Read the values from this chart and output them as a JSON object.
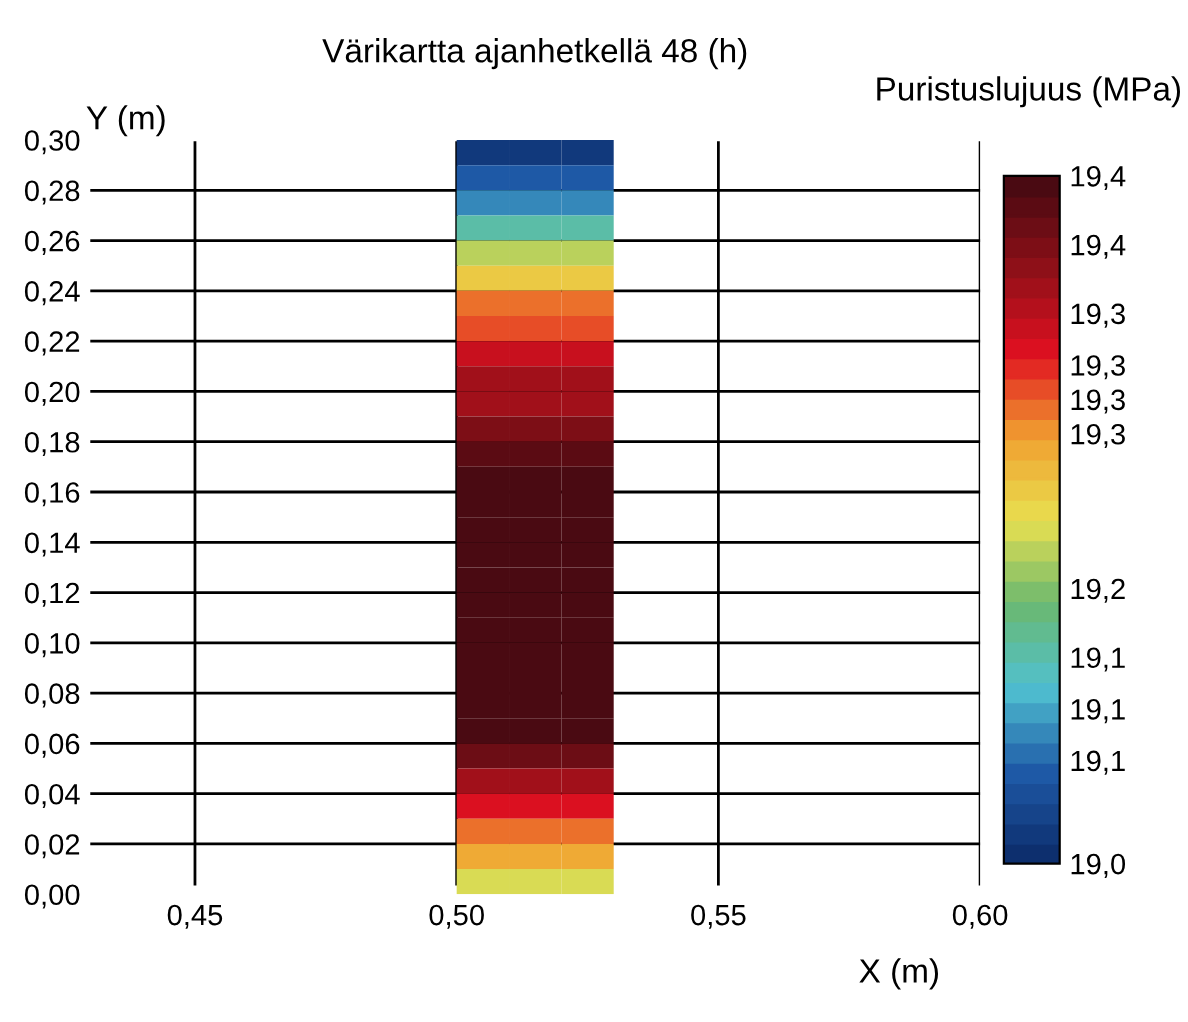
{
  "chart_data": {
    "type": "heatmap",
    "title": "Värikartta ajanhetkellä 48 (h)",
    "xlabel": "X (m)",
    "ylabel": "Y (m)",
    "clabel": "Puristuslujuus (MPa)",
    "cells": [
      [
        null,
        null,
        null,
        null,
        null,
        null,
        null,
        19.02,
        19.02,
        19.02,
        null,
        null,
        null,
        null,
        null,
        null,
        null
      ],
      [
        null,
        null,
        null,
        null,
        null,
        null,
        null,
        19.05,
        19.05,
        19.05,
        null,
        null,
        null,
        null,
        null,
        null,
        null
      ],
      [
        null,
        null,
        null,
        null,
        null,
        null,
        null,
        19.08,
        19.08,
        19.08,
        null,
        null,
        null,
        null,
        null,
        null,
        null
      ],
      [
        null,
        null,
        null,
        null,
        null,
        null,
        null,
        19.12,
        19.12,
        19.12,
        null,
        null,
        null,
        null,
        null,
        null,
        null
      ],
      [
        null,
        null,
        null,
        null,
        null,
        null,
        null,
        19.18,
        19.18,
        19.18,
        null,
        null,
        null,
        null,
        null,
        null,
        null
      ],
      [
        null,
        null,
        null,
        null,
        null,
        null,
        null,
        19.22,
        19.22,
        19.22,
        null,
        null,
        null,
        null,
        null,
        null,
        null
      ],
      [
        null,
        null,
        null,
        null,
        null,
        null,
        null,
        19.26,
        19.26,
        19.26,
        null,
        null,
        null,
        null,
        null,
        null,
        null
      ],
      [
        null,
        null,
        null,
        null,
        null,
        null,
        null,
        19.28,
        19.28,
        19.28,
        null,
        null,
        null,
        null,
        null,
        null,
        null
      ],
      [
        null,
        null,
        null,
        null,
        null,
        null,
        null,
        19.31,
        19.31,
        19.31,
        null,
        null,
        null,
        null,
        null,
        null,
        null
      ],
      [
        null,
        null,
        null,
        null,
        null,
        null,
        null,
        19.33,
        19.33,
        19.33,
        null,
        null,
        null,
        null,
        null,
        null,
        null
      ],
      [
        null,
        null,
        null,
        null,
        null,
        null,
        null,
        19.34,
        19.34,
        19.34,
        null,
        null,
        null,
        null,
        null,
        null,
        null
      ],
      [
        null,
        null,
        null,
        null,
        null,
        null,
        null,
        19.36,
        19.36,
        19.36,
        null,
        null,
        null,
        null,
        null,
        null,
        null
      ],
      [
        null,
        null,
        null,
        null,
        null,
        null,
        null,
        19.38,
        19.38,
        19.38,
        null,
        null,
        null,
        null,
        null,
        null,
        null
      ],
      [
        null,
        null,
        null,
        null,
        null,
        null,
        null,
        19.39,
        19.39,
        19.39,
        null,
        null,
        null,
        null,
        null,
        null,
        null
      ],
      [
        null,
        null,
        null,
        null,
        null,
        null,
        null,
        19.4,
        19.4,
        19.4,
        null,
        null,
        null,
        null,
        null,
        null,
        null
      ],
      [
        null,
        null,
        null,
        null,
        null,
        null,
        null,
        19.4,
        19.4,
        19.4,
        null,
        null,
        null,
        null,
        null,
        null,
        null
      ],
      [
        null,
        null,
        null,
        null,
        null,
        null,
        null,
        19.4,
        19.4,
        19.4,
        null,
        null,
        null,
        null,
        null,
        null,
        null
      ],
      [
        null,
        null,
        null,
        null,
        null,
        null,
        null,
        19.4,
        19.4,
        19.4,
        null,
        null,
        null,
        null,
        null,
        null,
        null
      ],
      [
        null,
        null,
        null,
        null,
        null,
        null,
        null,
        19.4,
        19.4,
        19.4,
        null,
        null,
        null,
        null,
        null,
        null,
        null
      ],
      [
        null,
        null,
        null,
        null,
        null,
        null,
        null,
        19.4,
        19.4,
        19.4,
        null,
        null,
        null,
        null,
        null,
        null,
        null
      ],
      [
        null,
        null,
        null,
        null,
        null,
        null,
        null,
        19.4,
        19.4,
        19.4,
        null,
        null,
        null,
        null,
        null,
        null,
        null
      ],
      [
        null,
        null,
        null,
        null,
        null,
        null,
        null,
        19.4,
        19.4,
        19.4,
        null,
        null,
        null,
        null,
        null,
        null,
        null
      ],
      [
        null,
        null,
        null,
        null,
        null,
        null,
        null,
        19.4,
        19.4,
        19.4,
        null,
        null,
        null,
        null,
        null,
        null,
        null
      ],
      [
        null,
        null,
        null,
        null,
        null,
        null,
        null,
        19.39,
        19.39,
        19.39,
        null,
        null,
        null,
        null,
        null,
        null,
        null
      ],
      [
        null,
        null,
        null,
        null,
        null,
        null,
        null,
        19.37,
        19.37,
        19.37,
        null,
        null,
        null,
        null,
        null,
        null,
        null
      ],
      [
        null,
        null,
        null,
        null,
        null,
        null,
        null,
        19.34,
        19.34,
        19.34,
        null,
        null,
        null,
        null,
        null,
        null,
        null
      ],
      [
        null,
        null,
        null,
        null,
        null,
        null,
        null,
        19.3,
        19.3,
        19.3,
        null,
        null,
        null,
        null,
        null,
        null,
        null
      ],
      [
        null,
        null,
        null,
        null,
        null,
        null,
        null,
        19.27,
        19.27,
        19.27,
        null,
        null,
        null,
        null,
        null,
        null,
        null
      ],
      [
        null,
        null,
        null,
        null,
        null,
        null,
        null,
        19.24,
        19.24,
        19.24,
        null,
        null,
        null,
        null,
        null,
        null,
        null
      ],
      [
        null,
        null,
        null,
        null,
        null,
        null,
        null,
        19.19,
        19.19,
        19.19,
        null,
        null,
        null,
        null,
        null,
        null,
        null
      ]
    ],
    "xlim": [
      0.43,
      0.6
    ],
    "xticks": [
      {
        "value": 0.45,
        "label": "0,45"
      },
      {
        "value": 0.5,
        "label": "0,50"
      },
      {
        "value": 0.55,
        "label": "0,55"
      },
      {
        "value": 0.6,
        "label": "0,60"
      }
    ],
    "ylim": [
      0.0,
      0.3
    ],
    "yticks": [
      {
        "value": 0.0,
        "label": "0,00"
      },
      {
        "value": 0.02,
        "label": "0,02"
      },
      {
        "value": 0.04,
        "label": "0,04"
      },
      {
        "value": 0.06,
        "label": "0,06"
      },
      {
        "value": 0.08,
        "label": "0,08"
      },
      {
        "value": 0.1,
        "label": "0,10"
      },
      {
        "value": 0.12,
        "label": "0,12"
      },
      {
        "value": 0.14,
        "label": "0,14"
      },
      {
        "value": 0.16,
        "label": "0,16"
      },
      {
        "value": 0.18,
        "label": "0,18"
      },
      {
        "value": 0.2,
        "label": "0,20"
      },
      {
        "value": 0.22,
        "label": "0,22"
      },
      {
        "value": 0.24,
        "label": "0,24"
      },
      {
        "value": 0.26,
        "label": "0,26"
      },
      {
        "value": 0.28,
        "label": "0,28"
      },
      {
        "value": 0.3,
        "label": "0,30"
      }
    ],
    "clim": [
      19.0,
      19.4
    ],
    "cticks": [
      {
        "value": 19.0,
        "label": "19,0"
      },
      {
        "value": 19.06,
        "label": "19,1"
      },
      {
        "value": 19.09,
        "label": "19,1"
      },
      {
        "value": 19.12,
        "label": "19,1"
      },
      {
        "value": 19.16,
        "label": "19,2"
      },
      {
        "value": 19.25,
        "label": "19,3"
      },
      {
        "value": 19.27,
        "label": "19,3"
      },
      {
        "value": 19.29,
        "label": "19,3"
      },
      {
        "value": 19.32,
        "label": "19,3"
      },
      {
        "value": 19.36,
        "label": "19,4"
      },
      {
        "value": 19.4,
        "label": "19,4"
      }
    ],
    "grid": true
  }
}
